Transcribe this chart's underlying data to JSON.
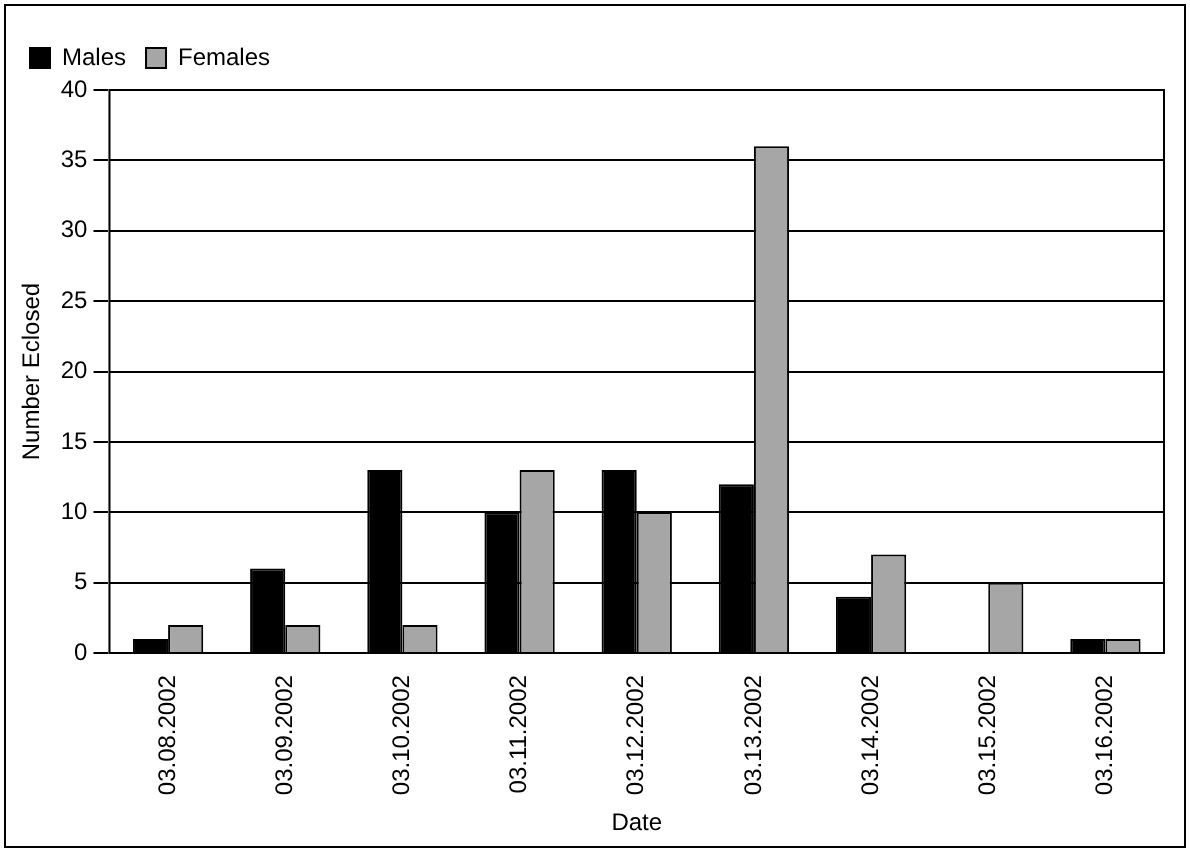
{
  "chart_data": {
    "type": "bar",
    "xlabel": "Date",
    "ylabel": "Number Eclosed",
    "categories": [
      "03.08.2002",
      "03.09.2002",
      "03.10.2002",
      "03.11.2002",
      "03.12.2002",
      "03.13.2002",
      "03.14.2002",
      "03.15.2002",
      "03.16.2002"
    ],
    "series": [
      {
        "name": "Males",
        "color": "#000000",
        "values": [
          1,
          6,
          13,
          10,
          13,
          12,
          4,
          0,
          1
        ]
      },
      {
        "name": "Females",
        "color": "#a6a6a6",
        "values": [
          2,
          2,
          2,
          13,
          10,
          36,
          7,
          5,
          1
        ]
      }
    ],
    "ylim": [
      0,
      40
    ],
    "yticks": [
      0,
      5,
      10,
      15,
      20,
      25,
      30,
      35,
      40
    ],
    "grid": "y",
    "legend": "top left"
  }
}
